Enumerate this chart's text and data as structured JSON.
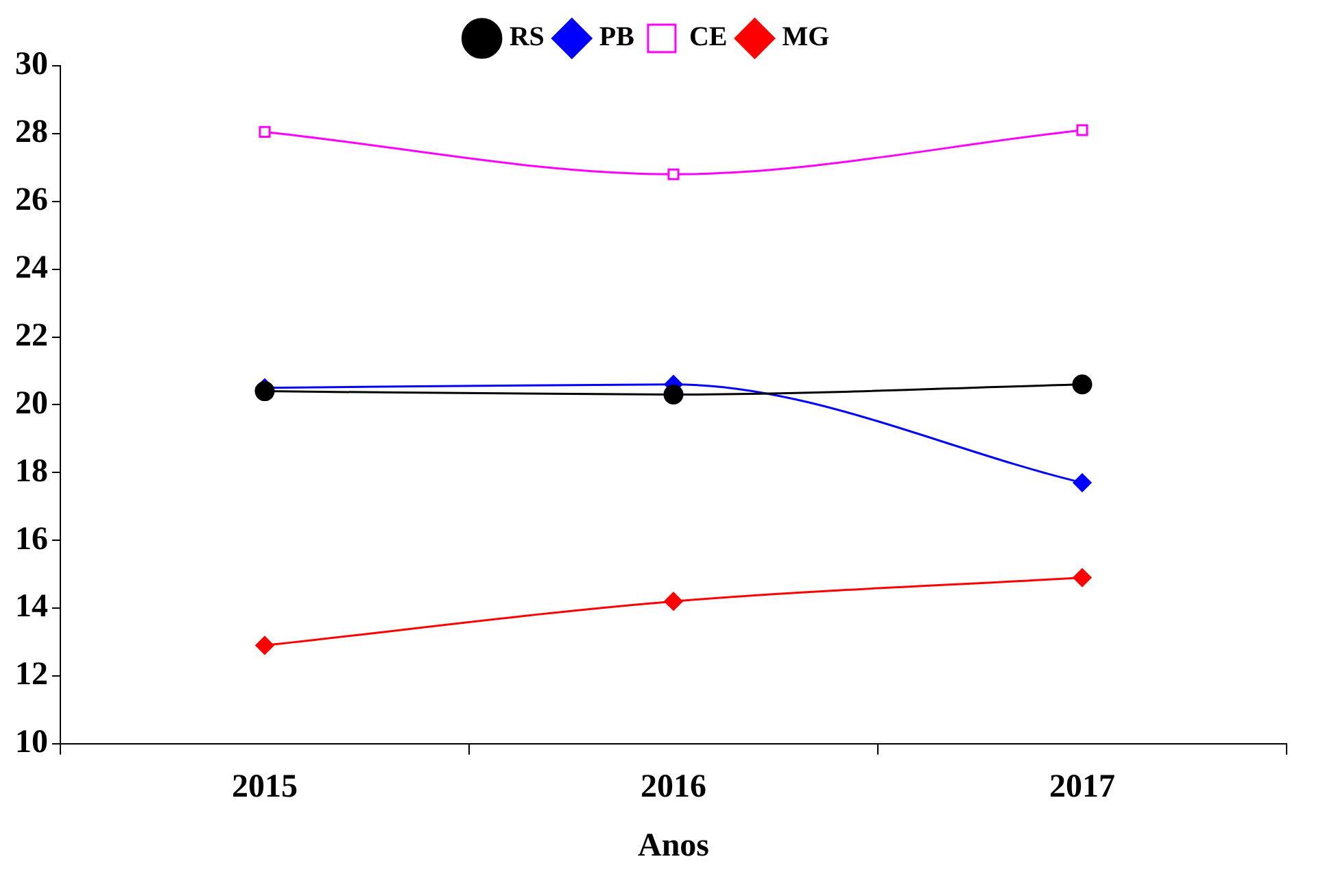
{
  "chart_data": {
    "type": "line",
    "xlabel": "Anos",
    "categories": [
      "2015",
      "2016",
      "2017"
    ],
    "series": [
      {
        "name": "PB",
        "color": "#0000ff",
        "values": [
          20.5,
          20.6,
          17.7
        ],
        "marker": "diamond"
      },
      {
        "name": "CE",
        "color": "#ff00ff",
        "values": [
          28.05,
          26.8,
          28.1
        ],
        "marker": "square"
      },
      {
        "name": "RS",
        "color": "#000000",
        "values": [
          20.4,
          20.3,
          20.6
        ],
        "marker": "circle"
      },
      {
        "name": "MG",
        "color": "#ff0000",
        "values": [
          12.9,
          14.2,
          14.9
        ],
        "marker": "diamond"
      }
    ],
    "ylim": [
      10,
      30
    ],
    "yticks": [
      10,
      12,
      14,
      16,
      18,
      20,
      22,
      24,
      26,
      28,
      30
    ],
    "grid": false,
    "legend": "top"
  }
}
